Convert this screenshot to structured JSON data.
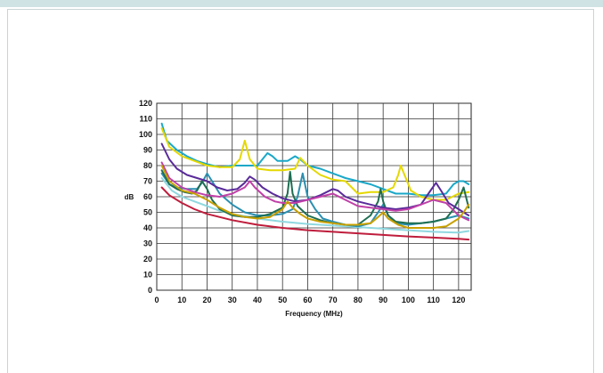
{
  "chart_data": {
    "type": "line",
    "title": "",
    "xlabel": "Frequency (MHz)",
    "ylabel": "dB",
    "xlim": [
      0,
      125
    ],
    "ylim": [
      0,
      120
    ],
    "x_ticks": [
      0,
      10,
      20,
      30,
      40,
      50,
      60,
      70,
      80,
      90,
      100,
      110,
      120
    ],
    "y_ticks": [
      0,
      10,
      20,
      30,
      40,
      50,
      60,
      70,
      80,
      90,
      100,
      110,
      120
    ],
    "grid": true,
    "legend": "none",
    "series": [
      {
        "color": "#bf1d3c",
        "points": [
          [
            2,
            66
          ],
          [
            5,
            61
          ],
          [
            10,
            56
          ],
          [
            15,
            52
          ],
          [
            20,
            49
          ],
          [
            30,
            45
          ],
          [
            40,
            42
          ],
          [
            50,
            40
          ],
          [
            60,
            38.5
          ],
          [
            70,
            37.5
          ],
          [
            80,
            36.5
          ],
          [
            90,
            35.5
          ],
          [
            100,
            34.5
          ],
          [
            110,
            33.8
          ],
          [
            120,
            33
          ],
          [
            124,
            32.5
          ]
        ]
      },
      {
        "color": "#8fd8e0",
        "points": [
          [
            2,
            72
          ],
          [
            6,
            64
          ],
          [
            10,
            60
          ],
          [
            15,
            57
          ],
          [
            20,
            54
          ],
          [
            25,
            51
          ],
          [
            30,
            49
          ],
          [
            40,
            46
          ],
          [
            50,
            44
          ],
          [
            60,
            42.5
          ],
          [
            70,
            41.5
          ],
          [
            80,
            40.5
          ],
          [
            90,
            39.5
          ],
          [
            100,
            38.5
          ],
          [
            110,
            37.5
          ],
          [
            120,
            37
          ],
          [
            124,
            38
          ]
        ]
      },
      {
        "color": "#1aa8c8",
        "points": [
          [
            2,
            107
          ],
          [
            4,
            96
          ],
          [
            8,
            90
          ],
          [
            12,
            86
          ],
          [
            16,
            83
          ],
          [
            20,
            81
          ],
          [
            25,
            79
          ],
          [
            30,
            80
          ],
          [
            35,
            80
          ],
          [
            40,
            80
          ],
          [
            42,
            84
          ],
          [
            44,
            88
          ],
          [
            46,
            86
          ],
          [
            48,
            83
          ],
          [
            52,
            83
          ],
          [
            55,
            86
          ],
          [
            57,
            84
          ],
          [
            60,
            80
          ],
          [
            65,
            78
          ],
          [
            70,
            75
          ],
          [
            75,
            72
          ],
          [
            80,
            70
          ],
          [
            85,
            68
          ],
          [
            90,
            65
          ],
          [
            95,
            62
          ],
          [
            100,
            62
          ],
          [
            105,
            61
          ],
          [
            110,
            61
          ],
          [
            115,
            62
          ],
          [
            118,
            68
          ],
          [
            120,
            70
          ],
          [
            122,
            70
          ],
          [
            124,
            68
          ]
        ]
      },
      {
        "color": "#e5d800",
        "points": [
          [
            2,
            104
          ],
          [
            5,
            92
          ],
          [
            10,
            86
          ],
          [
            15,
            83
          ],
          [
            20,
            80
          ],
          [
            25,
            79
          ],
          [
            30,
            79
          ],
          [
            33,
            84
          ],
          [
            35,
            96
          ],
          [
            37,
            84
          ],
          [
            40,
            78
          ],
          [
            45,
            77
          ],
          [
            50,
            77
          ],
          [
            55,
            78
          ],
          [
            57,
            85
          ],
          [
            60,
            80
          ],
          [
            65,
            74
          ],
          [
            70,
            71
          ],
          [
            75,
            70
          ],
          [
            80,
            62
          ],
          [
            85,
            63
          ],
          [
            90,
            63
          ],
          [
            94,
            66
          ],
          [
            96,
            74
          ],
          [
            97,
            80
          ],
          [
            99,
            72
          ],
          [
            101,
            64
          ],
          [
            105,
            60
          ],
          [
            110,
            58
          ],
          [
            115,
            58
          ],
          [
            120,
            62
          ],
          [
            124,
            63
          ]
        ]
      },
      {
        "color": "#2a8fb0",
        "points": [
          [
            2,
            75
          ],
          [
            5,
            68
          ],
          [
            8,
            66
          ],
          [
            12,
            65
          ],
          [
            16,
            65
          ],
          [
            18,
            69
          ],
          [
            20,
            75
          ],
          [
            22,
            70
          ],
          [
            25,
            62
          ],
          [
            30,
            55
          ],
          [
            35,
            50
          ],
          [
            40,
            48
          ],
          [
            45,
            48
          ],
          [
            50,
            49
          ],
          [
            54,
            52
          ],
          [
            56,
            60
          ],
          [
            58,
            75
          ],
          [
            60,
            60
          ],
          [
            63,
            52
          ],
          [
            66,
            46
          ],
          [
            70,
            44
          ],
          [
            75,
            42
          ],
          [
            80,
            41
          ],
          [
            85,
            43
          ],
          [
            88,
            50
          ],
          [
            90,
            55
          ],
          [
            92,
            48
          ],
          [
            95,
            43
          ],
          [
            100,
            42
          ],
          [
            105,
            43
          ],
          [
            110,
            44
          ],
          [
            115,
            46
          ],
          [
            120,
            48
          ],
          [
            124,
            46
          ]
        ]
      },
      {
        "color": "#1e6e52",
        "points": [
          [
            2,
            77
          ],
          [
            5,
            68
          ],
          [
            8,
            65
          ],
          [
            11,
            63
          ],
          [
            14,
            62
          ],
          [
            16,
            64
          ],
          [
            18,
            70
          ],
          [
            20,
            65
          ],
          [
            22,
            58
          ],
          [
            25,
            52
          ],
          [
            30,
            48
          ],
          [
            35,
            47
          ],
          [
            40,
            47
          ],
          [
            45,
            49
          ],
          [
            50,
            53
          ],
          [
            52,
            62
          ],
          [
            53,
            76
          ],
          [
            54,
            62
          ],
          [
            56,
            54
          ],
          [
            60,
            48
          ],
          [
            65,
            45
          ],
          [
            70,
            43
          ],
          [
            75,
            42
          ],
          [
            80,
            42
          ],
          [
            85,
            48
          ],
          [
            88,
            57
          ],
          [
            89,
            65
          ],
          [
            90,
            57
          ],
          [
            92,
            48
          ],
          [
            95,
            44
          ],
          [
            100,
            43
          ],
          [
            105,
            43
          ],
          [
            110,
            44
          ],
          [
            115,
            46
          ],
          [
            118,
            52
          ],
          [
            120,
            58
          ],
          [
            122,
            66
          ],
          [
            124,
            53
          ]
        ]
      },
      {
        "color": "#5a2b9a",
        "points": [
          [
            2,
            94
          ],
          [
            5,
            84
          ],
          [
            8,
            78
          ],
          [
            12,
            74
          ],
          [
            16,
            72
          ],
          [
            20,
            70
          ],
          [
            24,
            66
          ],
          [
            28,
            64
          ],
          [
            32,
            65
          ],
          [
            35,
            69
          ],
          [
            37,
            73
          ],
          [
            39,
            71
          ],
          [
            42,
            66
          ],
          [
            46,
            62
          ],
          [
            50,
            59
          ],
          [
            55,
            57
          ],
          [
            60,
            58
          ],
          [
            65,
            61
          ],
          [
            70,
            65
          ],
          [
            72,
            64
          ],
          [
            75,
            60
          ],
          [
            80,
            57
          ],
          [
            85,
            55
          ],
          [
            90,
            53
          ],
          [
            95,
            52
          ],
          [
            100,
            53
          ],
          [
            105,
            55
          ],
          [
            108,
            62
          ],
          [
            111,
            69
          ],
          [
            113,
            64
          ],
          [
            116,
            56
          ],
          [
            120,
            52
          ],
          [
            122,
            50
          ],
          [
            124,
            48
          ]
        ]
      },
      {
        "color": "#c040a8",
        "points": [
          [
            2,
            82
          ],
          [
            5,
            72
          ],
          [
            10,
            66
          ],
          [
            15,
            63
          ],
          [
            20,
            61
          ],
          [
            25,
            60
          ],
          [
            30,
            62
          ],
          [
            35,
            66
          ],
          [
            37,
            70
          ],
          [
            39,
            66
          ],
          [
            43,
            60
          ],
          [
            47,
            57
          ],
          [
            50,
            56
          ],
          [
            55,
            56
          ],
          [
            60,
            58
          ],
          [
            65,
            60
          ],
          [
            70,
            62
          ],
          [
            75,
            58
          ],
          [
            80,
            54
          ],
          [
            85,
            53
          ],
          [
            90,
            52
          ],
          [
            95,
            51
          ],
          [
            100,
            52
          ],
          [
            105,
            55
          ],
          [
            110,
            58
          ],
          [
            115,
            56
          ],
          [
            120,
            48
          ],
          [
            124,
            45
          ]
        ]
      },
      {
        "color": "#c8a000",
        "points": [
          [
            2,
            80
          ],
          [
            5,
            70
          ],
          [
            10,
            64
          ],
          [
            15,
            62
          ],
          [
            20,
            58
          ],
          [
            25,
            53
          ],
          [
            30,
            49
          ],
          [
            35,
            47
          ],
          [
            40,
            46
          ],
          [
            45,
            47
          ],
          [
            50,
            52
          ],
          [
            52,
            57
          ],
          [
            54,
            53
          ],
          [
            57,
            49
          ],
          [
            60,
            46
          ],
          [
            65,
            44
          ],
          [
            70,
            43
          ],
          [
            75,
            42
          ],
          [
            80,
            42
          ],
          [
            85,
            43
          ],
          [
            88,
            47
          ],
          [
            90,
            50
          ],
          [
            92,
            46
          ],
          [
            96,
            42
          ],
          [
            100,
            40
          ],
          [
            105,
            40
          ],
          [
            110,
            40
          ],
          [
            115,
            41
          ],
          [
            120,
            46
          ],
          [
            122,
            50
          ],
          [
            124,
            55
          ]
        ]
      }
    ]
  }
}
